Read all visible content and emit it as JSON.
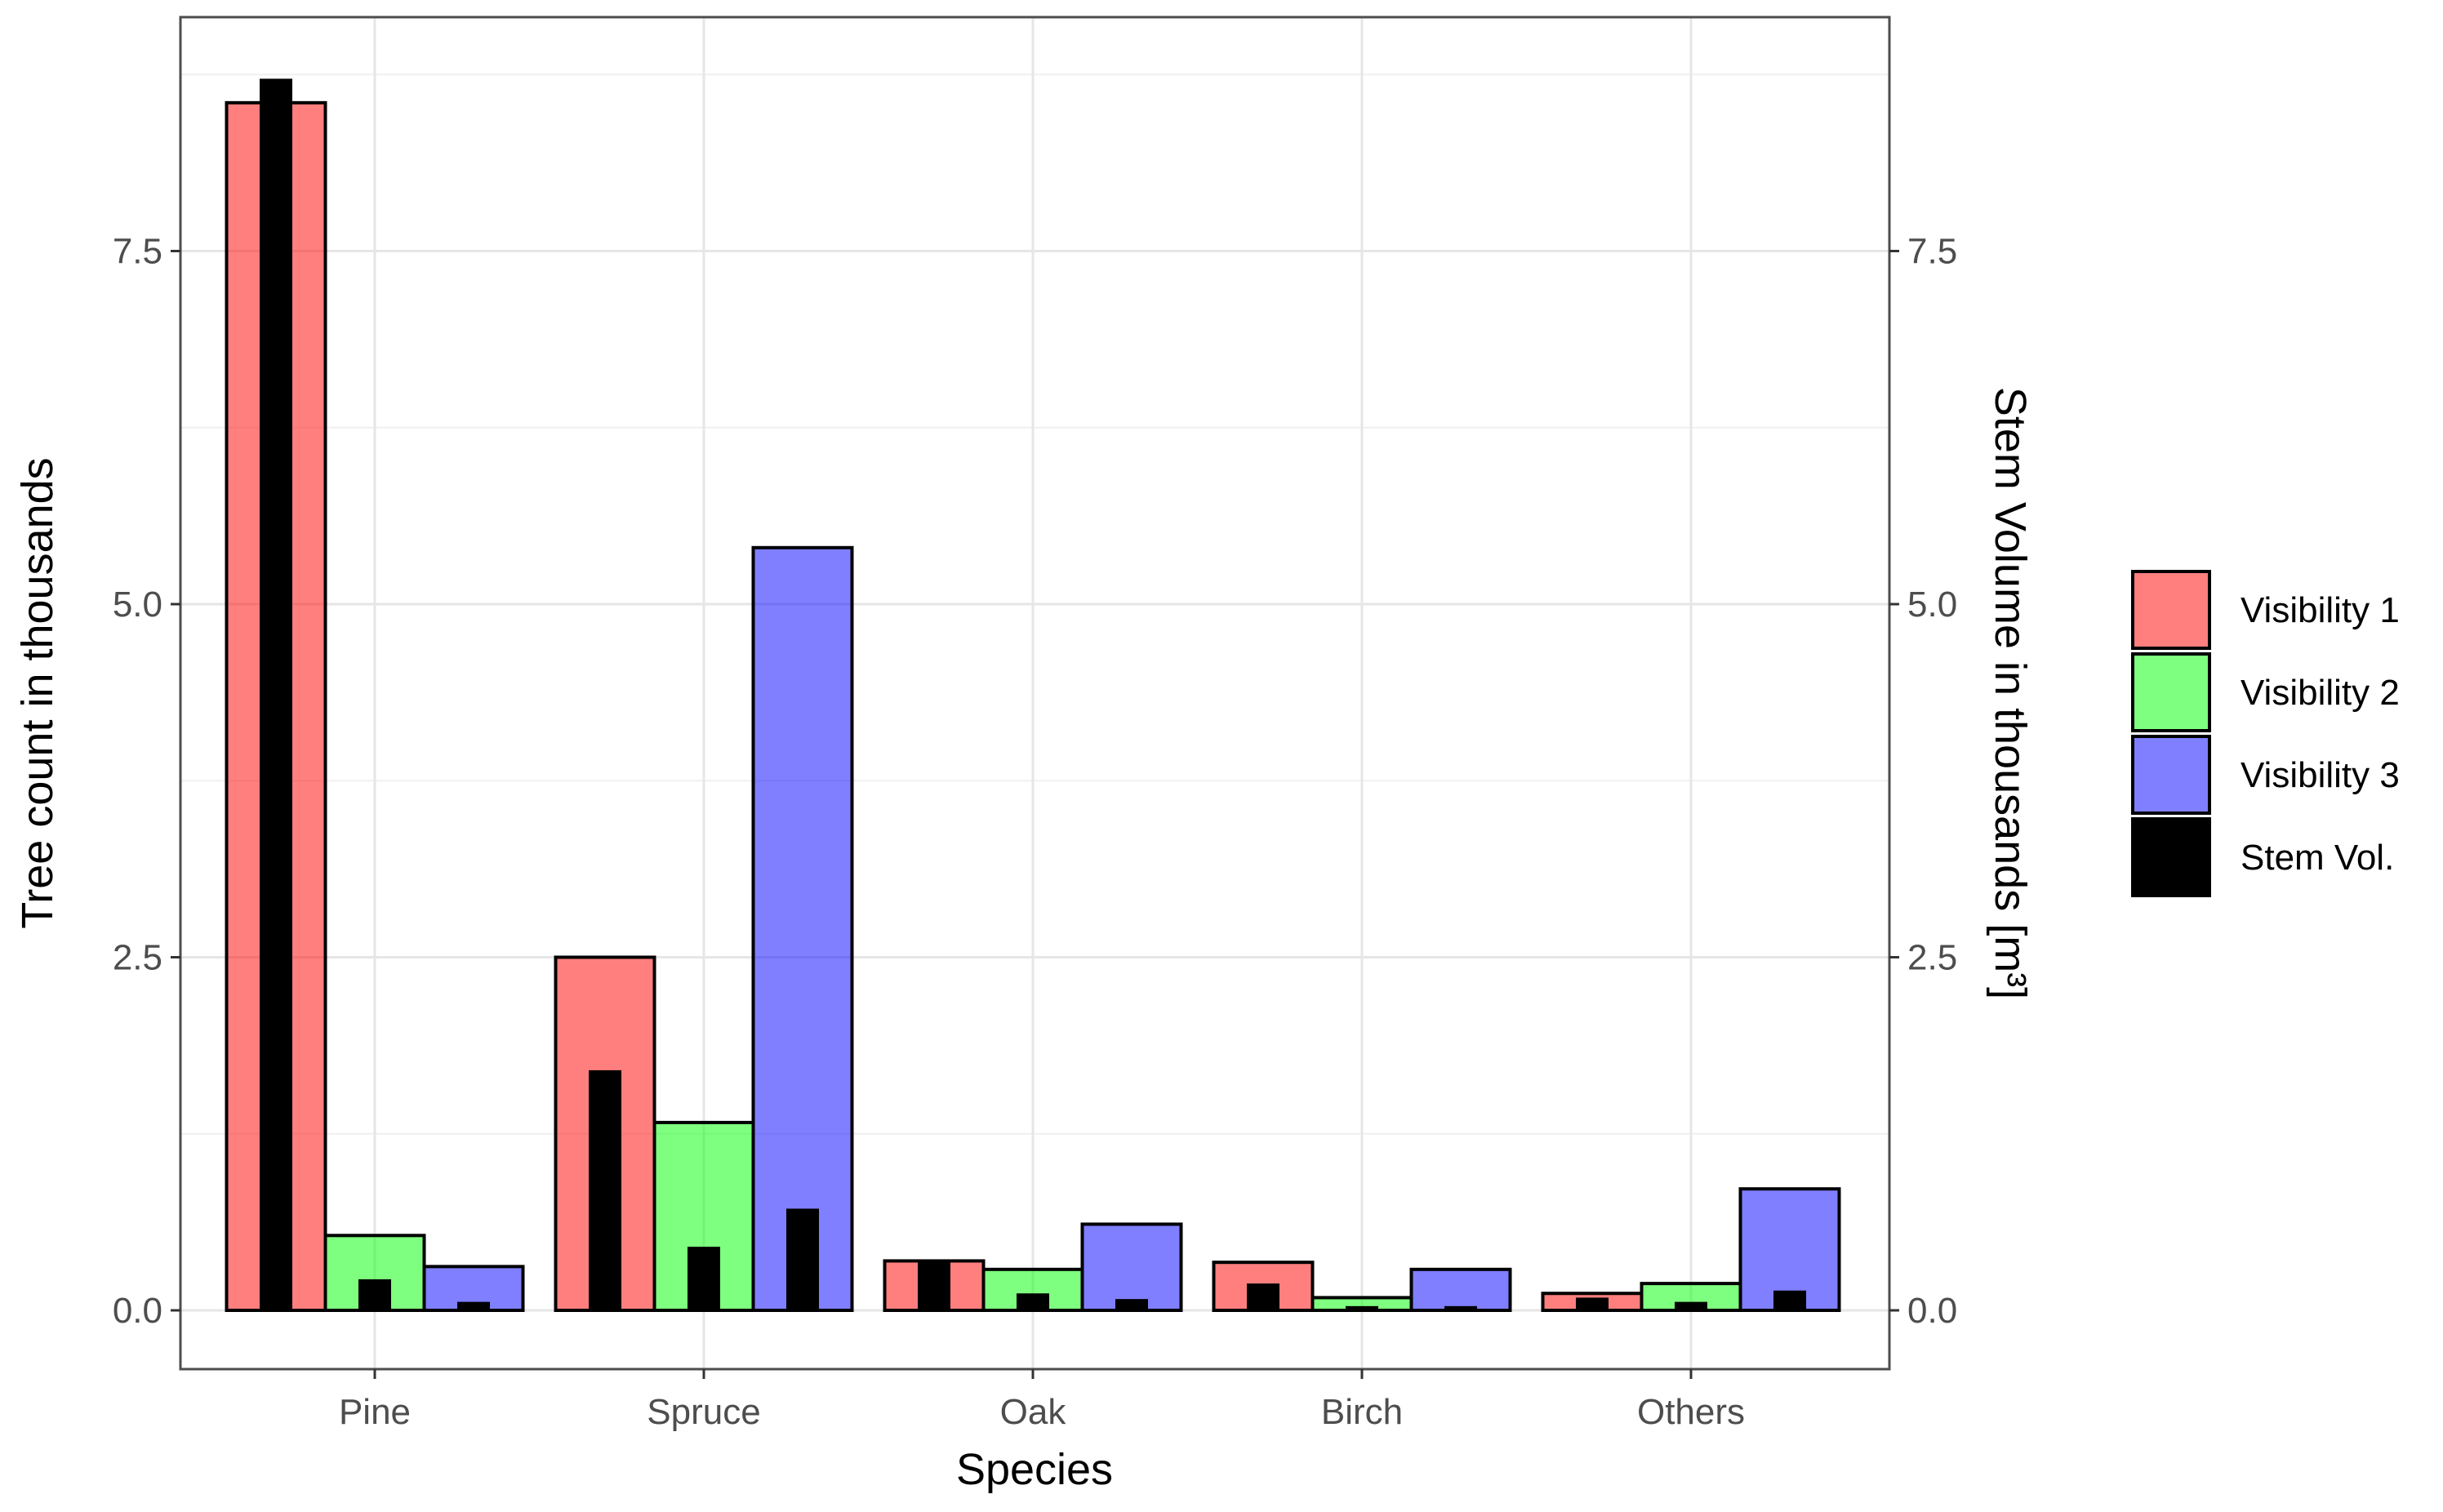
{
  "chart_data": {
    "type": "bar",
    "categories": [
      "Pine",
      "Spruce",
      "Oak",
      "Birch",
      "Others"
    ],
    "series": [
      {
        "name": "Visibility 1",
        "color": "#ff0000",
        "opacity": 0.5,
        "values": [
          8.55,
          2.5,
          0.35,
          0.34,
          0.12
        ]
      },
      {
        "name": "Visibility 2",
        "color": "#00ff00",
        "opacity": 0.5,
        "values": [
          0.53,
          1.33,
          0.29,
          0.09,
          0.19
        ]
      },
      {
        "name": "Visibility 3",
        "color": "#0000ff",
        "opacity": 0.5,
        "values": [
          0.31,
          5.4,
          0.61,
          0.29,
          0.86
        ]
      }
    ],
    "stem_volume": {
      "name": "Stem Vol.",
      "color": "#000000",
      "values": [
        [
          8.72,
          0.22,
          0.06
        ],
        [
          1.7,
          0.45,
          0.72
        ],
        [
          0.35,
          0.12,
          0.08
        ],
        [
          0.19,
          0.03,
          0.03
        ],
        [
          0.09,
          0.06,
          0.14
        ]
      ]
    },
    "xlabel": "Species",
    "ylabel": "Tree count in thousands",
    "y2label": "Stem Volume in thousands [m³]",
    "ylim": [
      -0.35,
      9.2
    ],
    "yticks": [
      0.0,
      2.5,
      5.0,
      7.5
    ],
    "ytick_labels": [
      "0.0",
      "2.5",
      "5.0",
      "7.5"
    ],
    "grid": true,
    "legend_position": "right",
    "legend": [
      "Visibility 1",
      "Visibility 2",
      "Visibility 3",
      "Stem Vol."
    ]
  }
}
